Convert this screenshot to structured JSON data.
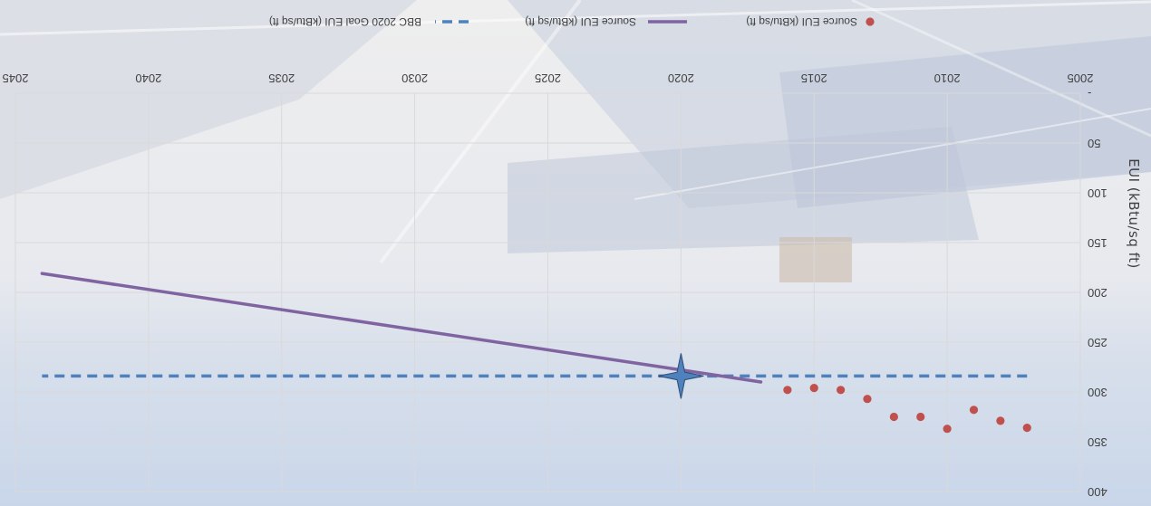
{
  "chart_data": {
    "type": "scatter",
    "orientation": "rotated 180 degrees",
    "title": "",
    "xlabel": "",
    "ylabel": "EUI (kBtu/sq ft)",
    "xlim": [
      2005,
      2045
    ],
    "ylim": [
      0,
      400
    ],
    "x_ticks": [
      2005,
      2010,
      2015,
      2020,
      2025,
      2030,
      2035,
      2040,
      2045
    ],
    "x_tick_labels": [
      "2005",
      "2010",
      "2015",
      "2020",
      "2025",
      "2030",
      "2035",
      "2040",
      "2045"
    ],
    "y_ticks": [
      0,
      50,
      100,
      150,
      200,
      250,
      300,
      350,
      400
    ],
    "y_tick_labels": [
      "-",
      "50",
      "100",
      "150",
      "200",
      "250",
      "300",
      "350",
      "400"
    ],
    "grid": true,
    "legend_position": "top",
    "series": [
      {
        "name": "Source EUI (kBtu/sq ft)",
        "kind": "scatter",
        "color": "#c0504d",
        "x": [
          2007,
          2008,
          2009,
          2010,
          2011,
          2012,
          2013,
          2014,
          2015,
          2016
        ],
        "y": [
          336,
          329,
          318,
          337,
          325,
          325,
          307,
          298,
          296,
          298
        ]
      },
      {
        "name": "Source EUI (kBtu/sq ft)",
        "kind": "line",
        "color": "#8064a2",
        "x": [
          2017,
          2044
        ],
        "y": [
          290,
          181
        ]
      },
      {
        "name": "BBC 2020 Goal EUI (kBtu/sq ft)",
        "kind": "dashed-line",
        "color": "#4f81bd",
        "x": [
          2007,
          2044
        ],
        "y": [
          284,
          284
        ]
      },
      {
        "name": "",
        "kind": "star-marker",
        "color": "#4f81bd",
        "x": [
          2020
        ],
        "y": [
          284
        ]
      }
    ]
  },
  "colors": {
    "sky": "#dce6f2",
    "axis_text": "#404040",
    "grid": "#d9d9d9"
  }
}
